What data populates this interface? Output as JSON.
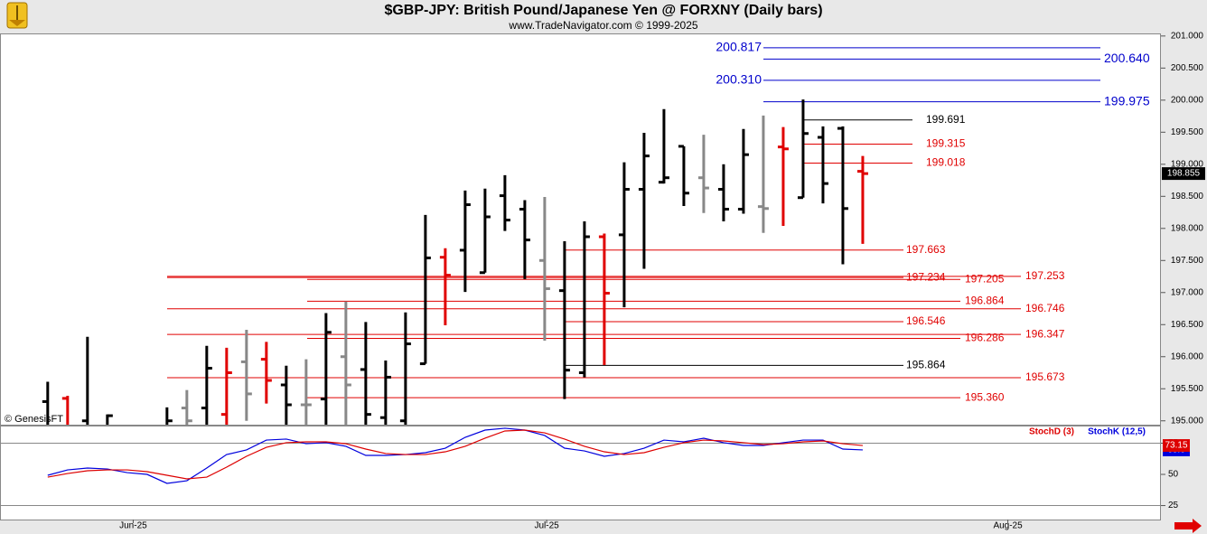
{
  "chart_data": [
    {
      "type": "ohlc",
      "title": "$GBP-JPY:  British Pound/Japanese Yen @ FORXNY  (Daily bars)",
      "subtitle": "www.TradeNavigator.com © 1999-2025",
      "watermark": "© GenesisFT",
      "xlim": [
        -2.4,
        56
      ],
      "ylim": [
        194.94,
        201.04
      ],
      "yticks": [
        {
          "value": 201,
          "label": "201.000"
        },
        {
          "value": 200.5,
          "label": "200.500"
        },
        {
          "value": 200,
          "label": "200.000"
        },
        {
          "value": 199.5,
          "label": "199.500"
        },
        {
          "value": 199,
          "label": "199.000"
        },
        {
          "value": 198.5,
          "label": "198.500"
        },
        {
          "value": 198,
          "label": "198.000"
        },
        {
          "value": 197.5,
          "label": "197.500"
        },
        {
          "value": 197,
          "label": "197.000"
        },
        {
          "value": 196.5,
          "label": "196.500"
        },
        {
          "value": 196,
          "label": "196.000"
        },
        {
          "value": 195.5,
          "label": "195.500"
        },
        {
          "value": 195,
          "label": "195.000"
        }
      ],
      "open": [
        195.3,
        195.35,
        195.0,
        194.9,
        null,
        null,
        194.9,
        195.2,
        195.2,
        195.1,
        195.92,
        195.96,
        195.56,
        195.25,
        195.34,
        196.0,
        195.8,
        195.05,
        195.0,
        195.89,
        197.55,
        197.66,
        197.31,
        198.51,
        198.3,
        197.5,
        197.03,
        195.75,
        197.87,
        197.9,
        198.61,
        198.72,
        199.28,
        198.79,
        198.61,
        198.3,
        198.34,
        199.27,
        198.48,
        199.42,
        199.56,
        198.89
      ],
      "high": [
        195.61,
        195.39,
        196.31,
        195.1,
        null,
        null,
        195.21,
        195.48,
        196.17,
        196.14,
        196.42,
        196.23,
        195.86,
        195.96,
        196.68,
        196.86,
        196.54,
        195.94,
        196.69,
        198.21,
        197.69,
        198.59,
        198.62,
        198.83,
        198.44,
        198.49,
        197.8,
        198.11,
        197.92,
        199.03,
        199.49,
        199.86,
        199.28,
        199.46,
        199.0,
        199.55,
        199.76,
        199.58,
        200.01,
        199.59,
        199.59,
        199.13
      ],
      "low": [
        194.7,
        194.8,
        194.6,
        194.8,
        null,
        null,
        194.7,
        194.8,
        194.7,
        194.8,
        195.0,
        195.27,
        194.9,
        194.9,
        194.9,
        194.9,
        194.8,
        194.8,
        194.9,
        195.89,
        196.49,
        197.01,
        197.31,
        197.96,
        197.21,
        196.25,
        195.34,
        195.68,
        195.87,
        196.77,
        197.37,
        198.7,
        198.35,
        198.24,
        198.11,
        198.23,
        197.93,
        198.04,
        198.48,
        198.39,
        197.44,
        197.76
      ],
      "close": [
        194.9,
        194.9,
        194.9,
        195.08,
        null,
        null,
        195.0,
        195.0,
        195.82,
        195.75,
        195.42,
        195.63,
        195.25,
        195.25,
        196.38,
        195.56,
        195.1,
        195.68,
        196.2,
        197.54,
        197.27,
        198.37,
        198.18,
        198.13,
        197.82,
        197.06,
        195.79,
        197.87,
        196.99,
        198.61,
        199.13,
        198.79,
        198.55,
        198.63,
        198.3,
        199.15,
        198.31,
        199.24,
        199.48,
        198.7,
        198.31,
        198.855
      ],
      "colors": [
        "#000000",
        "#e00000",
        "#000000",
        "#000000",
        null,
        null,
        "#000000",
        "#888888",
        "#000000",
        "#e00000",
        "#888888",
        "#e00000",
        "#000000",
        "#888888",
        "#000000",
        "#888888",
        "#000000",
        "#000000",
        "#000000",
        "#000000",
        "#e00000",
        "#000000",
        "#000000",
        "#000000",
        "#000000",
        "#888888",
        "#000000",
        "#000000",
        "#e00000",
        "#000000",
        "#000000",
        "#000000",
        "#000000",
        "#888888",
        "#000000",
        "#000000",
        "#888888",
        "#e00000",
        "#000000",
        "#000000",
        "#000000",
        "#e00000"
      ],
      "levels": [
        {
          "value": 200.817,
          "label": "200.817",
          "color": "#0000cc"
        },
        {
          "value": 200.64,
          "label": "200.640",
          "color": "#0000cc"
        },
        {
          "value": 200.31,
          "label": "200.310",
          "color": "#0000cc"
        },
        {
          "value": 199.975,
          "label": "199.975",
          "color": "#0000cc"
        },
        {
          "value": 199.691,
          "label": "199.691",
          "color": "#000000"
        },
        {
          "value": 199.315,
          "label": "199.315",
          "color": "#e00000"
        },
        {
          "value": 199.018,
          "label": "199.018",
          "color": "#e00000"
        },
        {
          "value": 197.663,
          "label": "197.663",
          "color": "#e00000"
        },
        {
          "value": 197.234,
          "label": "197.234",
          "color": "#e00000"
        },
        {
          "value": 197.205,
          "label": "197.205",
          "color": "#e00000"
        },
        {
          "value": 197.253,
          "label": "197.253",
          "color": "#e00000"
        },
        {
          "value": 196.864,
          "label": "196.864",
          "color": "#e00000"
        },
        {
          "value": 196.746,
          "label": "196.746",
          "color": "#e00000"
        },
        {
          "value": 196.546,
          "label": "196.546",
          "color": "#e00000"
        },
        {
          "value": 196.347,
          "label": "196.347",
          "color": "#e00000"
        },
        {
          "value": 196.286,
          "label": "196.286",
          "color": "#e00000"
        },
        {
          "value": 195.864,
          "label": "195.864",
          "color": "#000000"
        },
        {
          "value": 195.673,
          "label": "195.673",
          "color": "#e00000"
        },
        {
          "value": 195.36,
          "label": "195.360",
          "color": "#e00000"
        }
      ],
      "last": {
        "value": 198.855,
        "label": "198.855"
      }
    },
    {
      "type": "line",
      "xlim": [
        -2.4,
        56
      ],
      "ylim": [
        13.8,
        88.4
      ],
      "yticks": [
        75,
        50,
        25
      ],
      "lines": [
        75,
        25
      ],
      "xticks": [
        {
          "value": 4.3,
          "label": "Jun-25"
        },
        {
          "value": 25.1,
          "label": "Jul-25"
        },
        {
          "value": 48.3,
          "label": "Aug-25"
        }
      ],
      "series": [
        {
          "name": "StochK (12,5)",
          "color": "#0000dd",
          "values": [
            49.3,
            53.6,
            55.1,
            54.3,
            51.4,
            50,
            42.8,
            44.9,
            55.1,
            65.9,
            69.6,
            77.5,
            78.3,
            74.6,
            75.4,
            72.5,
            65.2,
            65.2,
            65.9,
            67.4,
            71.0,
            79.7,
            85.5,
            87.0,
            85.5,
            81.2,
            71.0,
            68.8,
            64.5,
            66.7,
            71.0,
            77.5,
            76.1,
            79.0,
            75.4,
            73.2,
            73.2,
            75.4,
            77.5,
            77.5,
            70.3,
            69.6
          ]
        },
        {
          "name": "StochD (3)",
          "color": "#dd0000",
          "values": [
            47.8,
            50.7,
            52.9,
            53.6,
            53.6,
            52.2,
            49.3,
            46.4,
            47.8,
            55.8,
            64.5,
            71.7,
            75.4,
            76.1,
            76.1,
            74.6,
            70.3,
            66.7,
            65.9,
            65.9,
            68.1,
            72.5,
            79.0,
            84.8,
            85.5,
            83.3,
            78.3,
            72.5,
            68.1,
            65.9,
            67.4,
            71.7,
            75.4,
            77.5,
            76.8,
            75.4,
            73.9,
            74.6,
            76.1,
            76.8,
            74.6,
            73.15
          ]
        }
      ]
    }
  ]
}
